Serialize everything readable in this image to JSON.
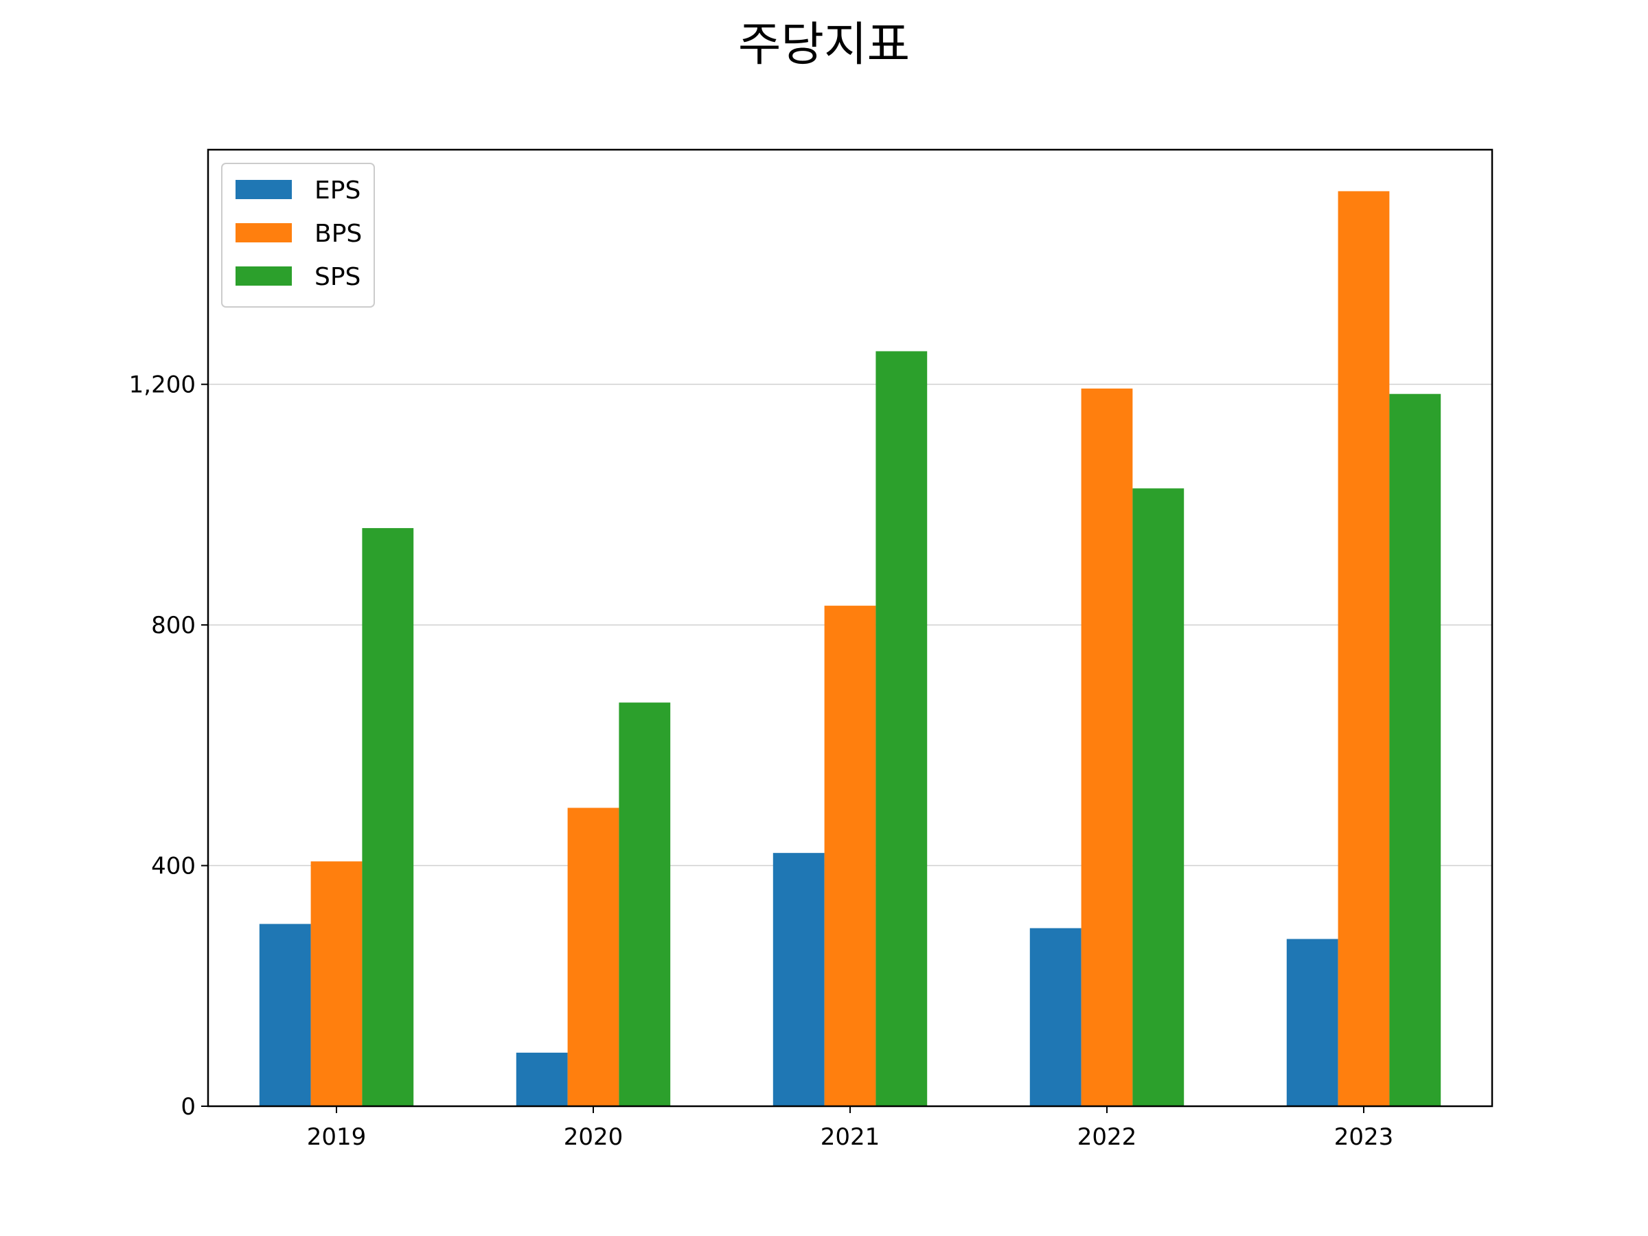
{
  "chart_data": {
    "type": "bar",
    "title": "주당지표",
    "xlabel": "",
    "ylabel": "",
    "categories": [
      "2019",
      "2020",
      "2021",
      "2022",
      "2023"
    ],
    "series": [
      {
        "name": "EPS",
        "color": "#1f77b4",
        "values": [
          303,
          89,
          421,
          296,
          278
        ]
      },
      {
        "name": "BPS",
        "color": "#ff7f0e",
        "values": [
          407,
          496,
          832,
          1193,
          1521
        ]
      },
      {
        "name": "SPS",
        "color": "#2ca02c",
        "values": [
          961,
          671,
          1255,
          1027,
          1184
        ]
      }
    ],
    "ylim": [
      0,
      1590
    ],
    "yticks": [
      0,
      400,
      800,
      1200
    ],
    "ytick_labels": [
      "0",
      "400",
      "800",
      "1,200"
    ],
    "grid": "y",
    "legend_position": "upper-left"
  }
}
